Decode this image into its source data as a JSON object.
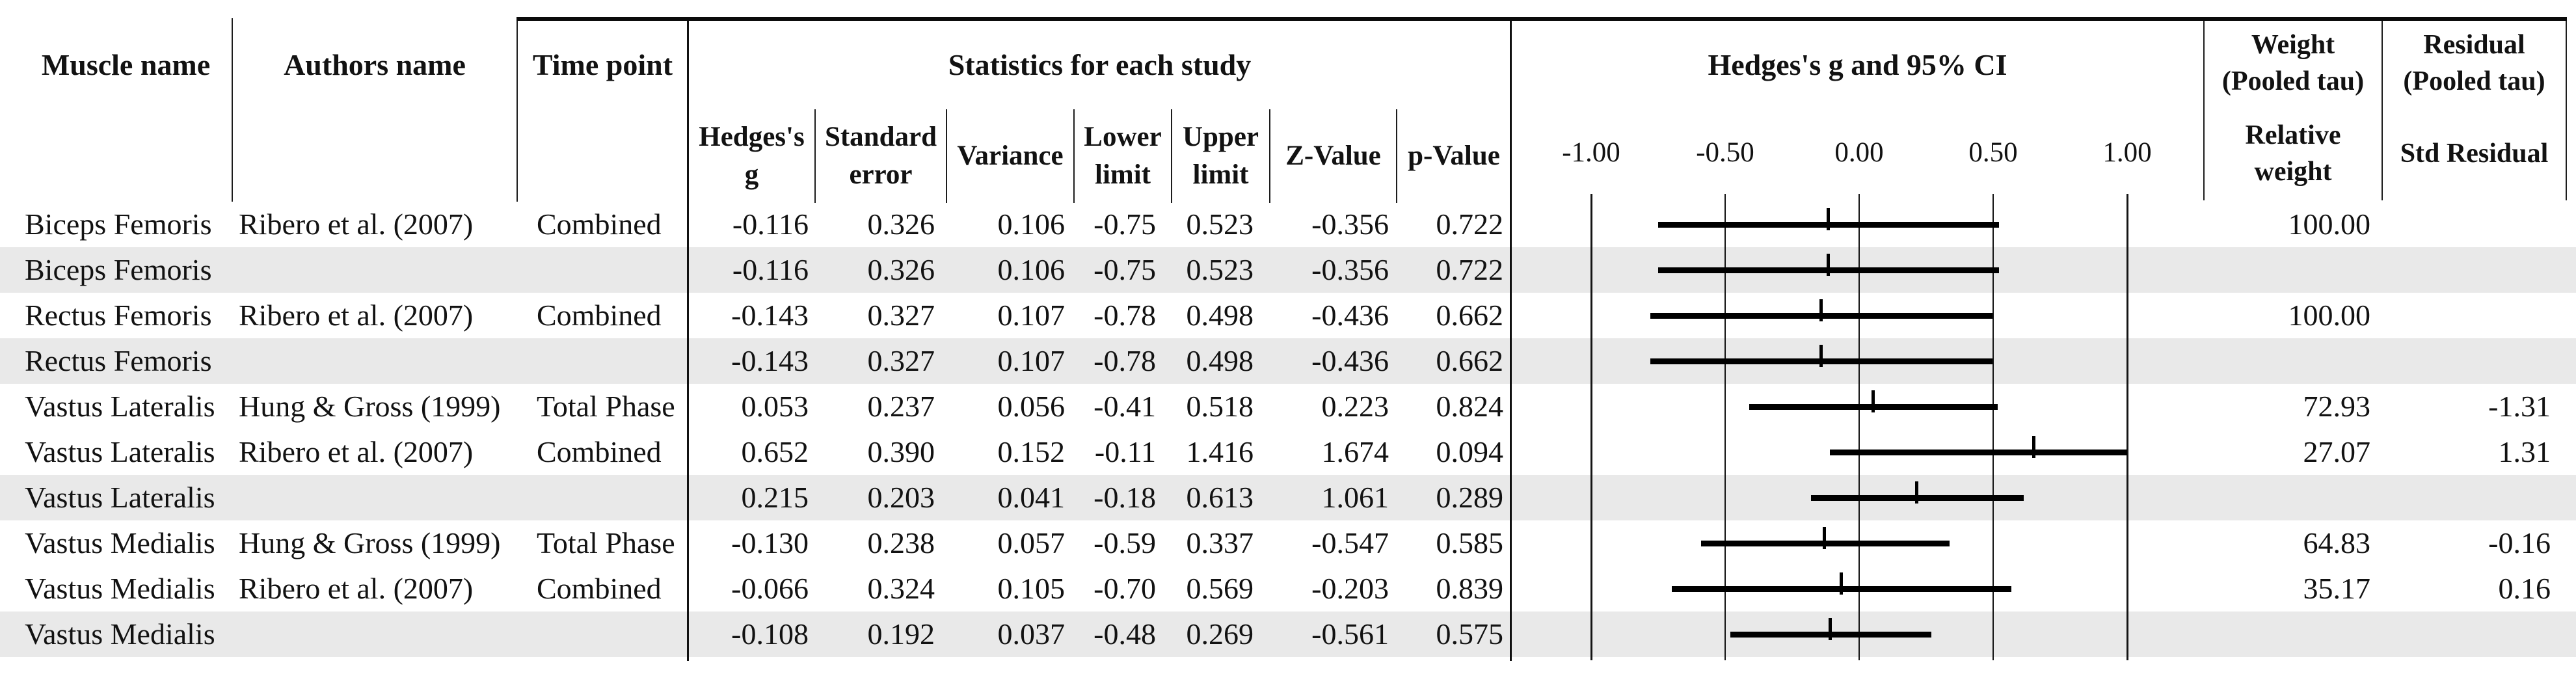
{
  "header": {
    "muscle_col": "Muscle name",
    "authors_col": "Authors name",
    "time_col": "Time point",
    "stats_group": "Statistics for each study",
    "forest_group": "Hedges's g and 95% CI",
    "stats_cols": [
      {
        "lines": [
          "Hedges's",
          "g"
        ]
      },
      {
        "lines": [
          "Standard",
          "error"
        ]
      },
      {
        "lines": [
          "Variance"
        ]
      },
      {
        "lines": [
          "Lower",
          "limit"
        ]
      },
      {
        "lines": [
          "Upper",
          "limit"
        ]
      },
      {
        "lines": [
          "Z-Value"
        ]
      },
      {
        "lines": [
          "p-Value"
        ]
      }
    ],
    "weight_col": {
      "line1": "Weight",
      "line2": "(Pooled tau)",
      "sub_line1": "Relative",
      "sub_line2": "weight"
    },
    "residual_col": {
      "line1": "Residual",
      "line2": "(Pooled tau)",
      "sub": "Std Residual"
    }
  },
  "rows": [
    {
      "muscle": "Biceps Femoris",
      "authors": "Ribero et al. (2007)",
      "time": "Combined",
      "g": "-0.116",
      "se": "0.326",
      "variance": "0.106",
      "ll": "-0.75",
      "ul": "0.523",
      "z": "-0.356",
      "p": "0.722",
      "weight": "100.00",
      "residual": "",
      "shaded": false
    },
    {
      "muscle": "Biceps Femoris",
      "authors": "",
      "time": "",
      "g": "-0.116",
      "se": "0.326",
      "variance": "0.106",
      "ll": "-0.75",
      "ul": "0.523",
      "z": "-0.356",
      "p": "0.722",
      "weight": "",
      "residual": "",
      "shaded": true
    },
    {
      "muscle": "Rectus Femoris",
      "authors": "Ribero et al. (2007)",
      "time": "Combined",
      "g": "-0.143",
      "se": "0.327",
      "variance": "0.107",
      "ll": "-0.78",
      "ul": "0.498",
      "z": "-0.436",
      "p": "0.662",
      "weight": "100.00",
      "residual": "",
      "shaded": false
    },
    {
      "muscle": "Rectus Femoris",
      "authors": "",
      "time": "",
      "g": "-0.143",
      "se": "0.327",
      "variance": "0.107",
      "ll": "-0.78",
      "ul": "0.498",
      "z": "-0.436",
      "p": "0.662",
      "weight": "",
      "residual": "",
      "shaded": true
    },
    {
      "muscle": "Vastus Lateralis",
      "authors": "Hung & Gross (1999)",
      "time": "Total Phase",
      "g": "0.053",
      "se": "0.237",
      "variance": "0.056",
      "ll": "-0.41",
      "ul": "0.518",
      "z": "0.223",
      "p": "0.824",
      "weight": "72.93",
      "residual": "-1.31",
      "shaded": false
    },
    {
      "muscle": "Vastus Lateralis",
      "authors": "Ribero et al. (2007)",
      "time": "Combined",
      "g": "0.652",
      "se": "0.390",
      "variance": "0.152",
      "ll": "-0.11",
      "ul": "1.416",
      "z": "1.674",
      "p": "0.094",
      "weight": "27.07",
      "residual": "1.31",
      "shaded": false
    },
    {
      "muscle": "Vastus Lateralis",
      "authors": "",
      "time": "",
      "g": "0.215",
      "se": "0.203",
      "variance": "0.041",
      "ll": "-0.18",
      "ul": "0.613",
      "z": "1.061",
      "p": "0.289",
      "weight": "",
      "residual": "",
      "shaded": true
    },
    {
      "muscle": "Vastus Medialis",
      "authors": "Hung & Gross (1999)",
      "time": "Total Phase",
      "g": "-0.130",
      "se": "0.238",
      "variance": "0.057",
      "ll": "-0.59",
      "ul": "0.337",
      "z": "-0.547",
      "p": "0.585",
      "weight": "64.83",
      "residual": "-0.16",
      "shaded": false
    },
    {
      "muscle": "Vastus Medialis",
      "authors": "Ribero et al. (2007)",
      "time": "Combined",
      "g": "-0.066",
      "se": "0.324",
      "variance": "0.105",
      "ll": "-0.70",
      "ul": "0.569",
      "z": "-0.203",
      "p": "0.839",
      "weight": "35.17",
      "residual": "0.16",
      "shaded": false
    },
    {
      "muscle": "Vastus Medialis",
      "authors": "",
      "time": "",
      "g": "-0.108",
      "se": "0.192",
      "variance": "0.037",
      "ll": "-0.48",
      "ul": "0.269",
      "z": "-0.561",
      "p": "0.575",
      "weight": "",
      "residual": "",
      "shaded": true
    }
  ],
  "chart_data": {
    "type": "forest",
    "title": "Hedges's g and 95% CI",
    "xlabel": "Hedges's g",
    "xlim": [
      -1.0,
      1.0
    ],
    "x_ticks": [
      -1.0,
      -0.5,
      0.0,
      0.5,
      1.0
    ],
    "x_tick_labels": [
      "-1.00",
      "-0.50",
      "0.00",
      "0.50",
      "1.00"
    ],
    "grid": true,
    "categories": [
      "Biceps Femoris / Ribero et al. (2007) / Combined",
      "Biceps Femoris (pooled)",
      "Rectus Femoris / Ribero et al. (2007) / Combined",
      "Rectus Femoris (pooled)",
      "Vastus Lateralis / Hung & Gross (1999) / Total Phase",
      "Vastus Lateralis / Ribero et al. (2007) / Combined",
      "Vastus Lateralis (pooled)",
      "Vastus Medialis / Hung & Gross (1999) / Total Phase",
      "Vastus Medialis / Ribero et al. (2007) / Combined",
      "Vastus Medialis (pooled)"
    ],
    "points": [
      {
        "g": -0.116,
        "lower": -0.75,
        "upper": 0.523
      },
      {
        "g": -0.116,
        "lower": -0.75,
        "upper": 0.523
      },
      {
        "g": -0.143,
        "lower": -0.78,
        "upper": 0.498
      },
      {
        "g": -0.143,
        "lower": -0.78,
        "upper": 0.498
      },
      {
        "g": 0.053,
        "lower": -0.41,
        "upper": 0.518
      },
      {
        "g": 0.652,
        "lower": -0.11,
        "upper": 1.416
      },
      {
        "g": 0.215,
        "lower": -0.18,
        "upper": 0.613
      },
      {
        "g": -0.13,
        "lower": -0.59,
        "upper": 0.337
      },
      {
        "g": -0.066,
        "lower": -0.7,
        "upper": 0.569
      },
      {
        "g": -0.108,
        "lower": -0.48,
        "upper": 0.269
      }
    ],
    "colors": {
      "bar": "#000000",
      "stripe": "#e9e9e9",
      "text": "#121212"
    }
  }
}
